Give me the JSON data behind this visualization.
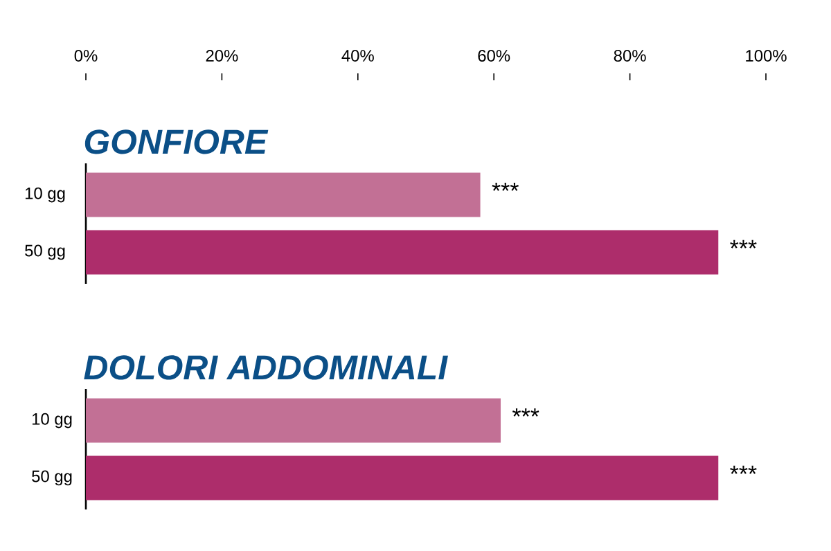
{
  "chart_data": [
    {
      "type": "bar",
      "orientation": "horizontal",
      "title": "GONFIORE",
      "categories": [
        "10 gg",
        "50 gg"
      ],
      "values": [
        58,
        93
      ],
      "colors": [
        "#c27095",
        "#ad2d6b"
      ],
      "xlim": [
        0,
        100
      ],
      "xticks": [
        {
          "value": 0,
          "label": "0%"
        },
        {
          "value": 20,
          "label": "20%"
        },
        {
          "value": 40,
          "label": "40%"
        },
        {
          "value": 60,
          "label": "60%"
        },
        {
          "value": 80,
          "label": "80%"
        },
        {
          "value": 100,
          "label": "100%"
        }
      ],
      "annotations": [
        "***",
        "***"
      ]
    },
    {
      "type": "bar",
      "orientation": "horizontal",
      "title": "DOLORI ADDOMINALI",
      "categories": [
        "10 gg",
        "50 gg"
      ],
      "values": [
        61,
        93
      ],
      "colors": [
        "#c27095",
        "#ad2d6b"
      ],
      "xlim": [
        0,
        100
      ],
      "tick_labels": "y",
      "annotations": [
        "***",
        "***"
      ]
    }
  ]
}
